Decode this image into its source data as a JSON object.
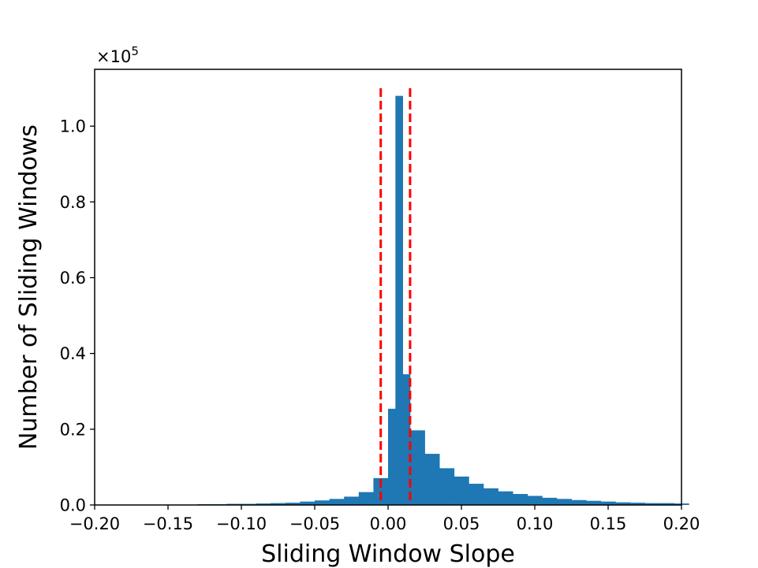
{
  "chart_data": {
    "type": "bar",
    "xlabel": "Sliding Window Slope",
    "ylabel": "Number of Sliding Windows",
    "y_offset_text": "×10",
    "y_offset_exponent": "5",
    "xlim": [
      -0.2,
      0.2
    ],
    "ylim": [
      0,
      1.15
    ],
    "y_scale_factor": 100000,
    "x_ticks": [
      -0.2,
      -0.15,
      -0.1,
      -0.05,
      0.0,
      0.05,
      0.1,
      0.15,
      0.2
    ],
    "x_tick_labels": [
      "−0.20",
      "−0.15",
      "−0.10",
      "−0.05",
      "0.00",
      "0.05",
      "0.10",
      "0.15",
      "0.20"
    ],
    "y_ticks": [
      0.0,
      0.2,
      0.4,
      0.6,
      0.8,
      1.0
    ],
    "y_tick_labels": [
      "0.0",
      "0.2",
      "0.4",
      "0.6",
      "0.8",
      "1.0"
    ],
    "grid": false,
    "bar_color": "#1f77b4",
    "threshold_color": "#ff0000",
    "thresholds": [
      -0.005,
      0.015
    ],
    "threshold_top": 1.1,
    "bins": [
      {
        "x0": -0.13,
        "x1": -0.12,
        "value": 0.002
      },
      {
        "x0": -0.12,
        "x1": -0.11,
        "value": 0.002
      },
      {
        "x0": -0.11,
        "x1": -0.1,
        "value": 0.003
      },
      {
        "x0": -0.1,
        "x1": -0.09,
        "value": 0.003
      },
      {
        "x0": -0.09,
        "x1": -0.08,
        "value": 0.004
      },
      {
        "x0": -0.08,
        "x1": -0.07,
        "value": 0.005
      },
      {
        "x0": -0.07,
        "x1": -0.06,
        "value": 0.006
      },
      {
        "x0": -0.06,
        "x1": -0.05,
        "value": 0.009
      },
      {
        "x0": -0.05,
        "x1": -0.04,
        "value": 0.012
      },
      {
        "x0": -0.04,
        "x1": -0.03,
        "value": 0.016
      },
      {
        "x0": -0.03,
        "x1": -0.02,
        "value": 0.022
      },
      {
        "x0": -0.02,
        "x1": -0.01,
        "value": 0.034
      },
      {
        "x0": -0.01,
        "x1": 0.0,
        "value": 0.071
      },
      {
        "x0": 0.0,
        "x1": 0.005,
        "value": 0.254
      },
      {
        "x0": 0.005,
        "x1": 0.01,
        "value": 1.08
      },
      {
        "x0": 0.01,
        "x1": 0.015,
        "value": 0.345
      },
      {
        "x0": 0.015,
        "x1": 0.025,
        "value": 0.197
      },
      {
        "x0": 0.025,
        "x1": 0.035,
        "value": 0.135
      },
      {
        "x0": 0.035,
        "x1": 0.045,
        "value": 0.097
      },
      {
        "x0": 0.045,
        "x1": 0.055,
        "value": 0.075
      },
      {
        "x0": 0.055,
        "x1": 0.065,
        "value": 0.056
      },
      {
        "x0": 0.065,
        "x1": 0.075,
        "value": 0.044
      },
      {
        "x0": 0.075,
        "x1": 0.085,
        "value": 0.036
      },
      {
        "x0": 0.085,
        "x1": 0.095,
        "value": 0.029
      },
      {
        "x0": 0.095,
        "x1": 0.105,
        "value": 0.024
      },
      {
        "x0": 0.105,
        "x1": 0.115,
        "value": 0.019
      },
      {
        "x0": 0.115,
        "x1": 0.125,
        "value": 0.016
      },
      {
        "x0": 0.125,
        "x1": 0.135,
        "value": 0.013
      },
      {
        "x0": 0.135,
        "x1": 0.145,
        "value": 0.011
      },
      {
        "x0": 0.145,
        "x1": 0.155,
        "value": 0.009
      },
      {
        "x0": 0.155,
        "x1": 0.165,
        "value": 0.007
      },
      {
        "x0": 0.165,
        "x1": 0.175,
        "value": 0.006
      },
      {
        "x0": 0.175,
        "x1": 0.185,
        "value": 0.005
      },
      {
        "x0": 0.185,
        "x1": 0.195,
        "value": 0.005
      },
      {
        "x0": 0.195,
        "x1": 0.205,
        "value": 0.004
      }
    ]
  }
}
